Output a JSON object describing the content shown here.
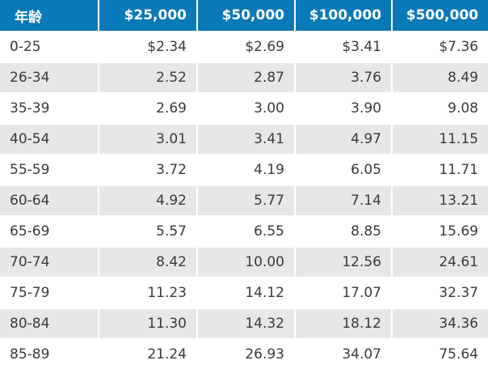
{
  "headers": [
    "年龄",
    "$25,000",
    "$50,000",
    "$100,000",
    "$500,000"
  ],
  "rows": [
    [
      "0-25",
      "$2.34",
      "$2.69",
      "$3.41",
      "$7.36"
    ],
    [
      "26-34",
      "2.52",
      "2.87",
      "3.76",
      "8.49"
    ],
    [
      "35-39",
      "2.69",
      "3.00",
      "3.90",
      "9.08"
    ],
    [
      "40-54",
      "3.01",
      "3.41",
      "4.97",
      "11.15"
    ],
    [
      "55-59",
      "3.72",
      "4.19",
      "6.05",
      "11.71"
    ],
    [
      "60-64",
      "4.92",
      "5.77",
      "7.14",
      "13.21"
    ],
    [
      "65-69",
      "5.57",
      "6.55",
      "8.85",
      "15.69"
    ],
    [
      "70-74",
      "8.42",
      "10.00",
      "12.56",
      "24.61"
    ],
    [
      "75-79",
      "11.23",
      "14.12",
      "17.07",
      "32.37"
    ],
    [
      "80-84",
      "11.30",
      "14.32",
      "18.12",
      "34.36"
    ],
    [
      "85-89",
      "21.24",
      "26.93",
      "34.07",
      "75.64"
    ]
  ],
  "colors": {
    "header_bg": "#0a79b8",
    "header_text": "#ffffff",
    "row_stripe": "#e6e7e8",
    "cell_text": "#3a3a3a"
  }
}
